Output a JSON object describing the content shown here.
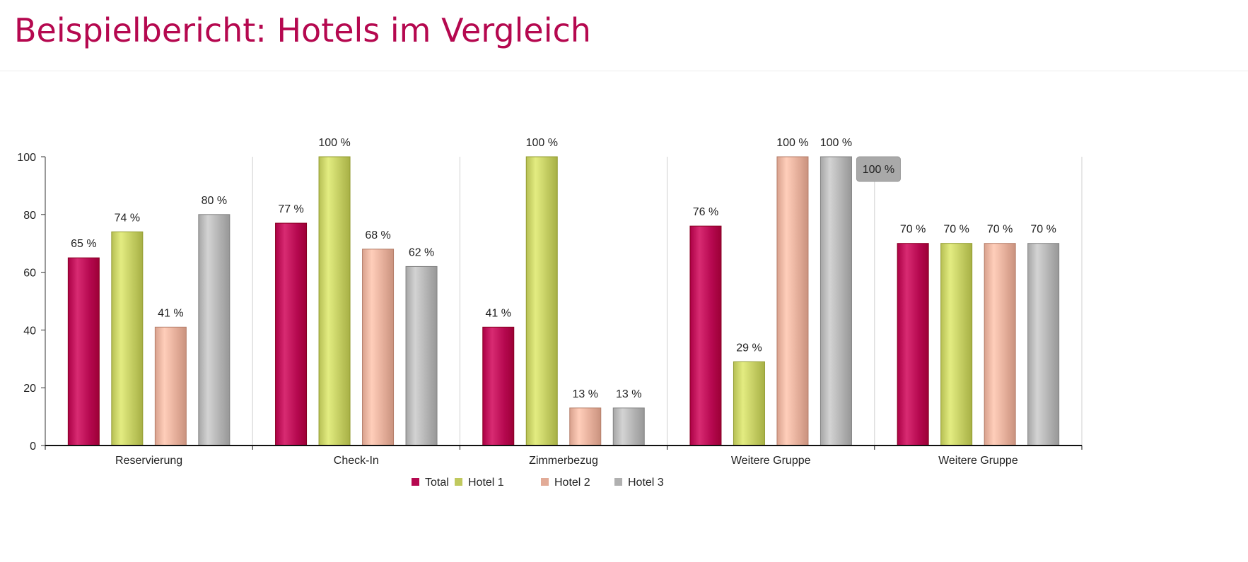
{
  "header": {
    "title": "Beispielbericht: Hotels im Vergleich"
  },
  "colors": {
    "title": "#b5084f",
    "Total": "#b5084f",
    "Hotel 1": "#c0c95e",
    "Hotel 2": "#e2ab97",
    "Hotel 3": "#b0b0b0"
  },
  "tooltip": {
    "text": "100 %",
    "category_index": 3,
    "series": "Hotel 3"
  },
  "chart_data": {
    "type": "bar",
    "title": "",
    "xlabel": "",
    "ylabel": "",
    "ylim": [
      0,
      100
    ],
    "yticks": [
      0,
      20,
      40,
      60,
      80,
      100
    ],
    "ytick_labels": [
      "0",
      "20",
      "40",
      "60",
      "80",
      "100"
    ],
    "grid": "vertical separators between categories",
    "legend_position": "bottom-center",
    "value_suffix": " %",
    "categories": [
      "Reservierung",
      "Check-In",
      "Zimmerbezug",
      "Weitere Gruppe",
      "Weitere Gruppe"
    ],
    "series": [
      {
        "name": "Total",
        "values": [
          65,
          77,
          41,
          76,
          70
        ],
        "labels": [
          "65 %",
          "77 %",
          "41 %",
          "76 %",
          "70 %"
        ]
      },
      {
        "name": "Hotel 1",
        "values": [
          74,
          100,
          100,
          29,
          70
        ],
        "labels": [
          "74 %",
          "100 %",
          "100 %",
          "29 %",
          "70 %"
        ]
      },
      {
        "name": "Hotel 2",
        "values": [
          41,
          68,
          13,
          100,
          70
        ],
        "labels": [
          "41 %",
          "68 %",
          "13 %",
          "100 %",
          "70 %"
        ]
      },
      {
        "name": "Hotel 3",
        "values": [
          80,
          62,
          13,
          100,
          70
        ],
        "labels": [
          "80 %",
          "62 %",
          "13 %",
          "100 %",
          "70 %"
        ]
      }
    ]
  }
}
